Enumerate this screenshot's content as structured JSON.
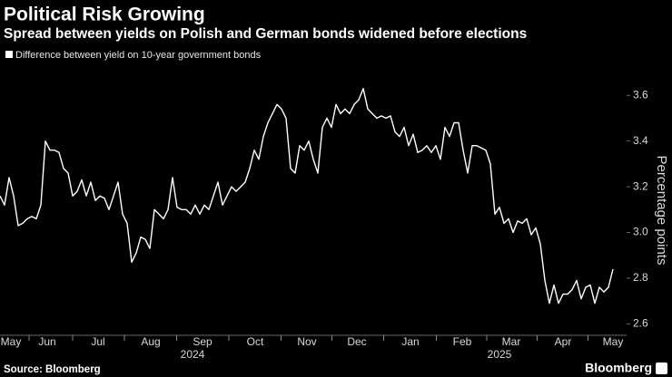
{
  "chart_data": {
    "type": "line",
    "title": "Political Risk Growing",
    "subtitle": "Spread between yields on Polish and German bonds widened before elections",
    "y_label": "Percentage points",
    "source": "Source: Bloomberg",
    "brand": "Bloomberg",
    "grid": false,
    "series": [
      {
        "name": "Difference between yield on 10-year government bonds",
        "color": "#ffffff",
        "values": [
          3.16,
          3.12,
          3.24,
          3.16,
          3.03,
          3.04,
          3.06,
          3.07,
          3.06,
          3.12,
          3.4,
          3.36,
          3.36,
          3.35,
          3.28,
          3.26,
          3.16,
          3.18,
          3.23,
          3.16,
          3.22,
          3.14,
          3.16,
          3.15,
          3.1,
          3.16,
          3.22,
          3.08,
          3.04,
          2.87,
          2.91,
          2.98,
          2.97,
          2.93,
          3.1,
          3.08,
          3.06,
          3.1,
          3.24,
          3.11,
          3.1,
          3.1,
          3.08,
          3.12,
          3.08,
          3.12,
          3.1,
          3.16,
          3.22,
          3.12,
          3.16,
          3.2,
          3.18,
          3.2,
          3.22,
          3.28,
          3.36,
          3.32,
          3.42,
          3.48,
          3.52,
          3.56,
          3.54,
          3.5,
          3.28,
          3.26,
          3.38,
          3.36,
          3.4,
          3.32,
          3.26,
          3.46,
          3.5,
          3.46,
          3.56,
          3.52,
          3.54,
          3.52,
          3.56,
          3.58,
          3.63,
          3.54,
          3.52,
          3.5,
          3.51,
          3.5,
          3.51,
          3.44,
          3.42,
          3.46,
          3.38,
          3.43,
          3.35,
          3.36,
          3.38,
          3.35,
          3.38,
          3.32,
          3.46,
          3.42,
          3.48,
          3.48,
          3.36,
          3.26,
          3.38,
          3.38,
          3.37,
          3.36,
          3.3,
          3.08,
          3.11,
          3.04,
          3.06,
          3.0,
          3.05,
          3.04,
          3.06,
          2.99,
          3.02,
          2.95,
          2.79,
          2.69,
          2.77,
          2.69,
          2.73,
          2.73,
          2.75,
          2.79,
          2.71,
          2.76,
          2.77,
          2.69,
          2.76,
          2.74,
          2.76,
          2.84
        ]
      }
    ],
    "xlim": [
      0,
      138
    ],
    "xticks": [
      {
        "value": 2.4,
        "label": "May"
      },
      {
        "value": 10.4,
        "label": "Jun"
      },
      {
        "value": 21.6,
        "label": "Jul"
      },
      {
        "value": 33.2,
        "label": "Aug"
      },
      {
        "value": 44.6,
        "label": "Sep"
      },
      {
        "value": 56.2,
        "label": "Oct"
      },
      {
        "value": 67.6,
        "label": "Nov"
      },
      {
        "value": 78.6,
        "label": "Dec"
      },
      {
        "value": 90.4,
        "label": "Jan"
      },
      {
        "value": 101.8,
        "label": "Feb"
      },
      {
        "value": 112.6,
        "label": "Mar"
      },
      {
        "value": 124,
        "label": "Apr"
      },
      {
        "value": 135,
        "label": "May"
      }
    ],
    "year_labels": [
      {
        "value": 42.4,
        "label": "2024"
      },
      {
        "value": 110,
        "label": "2025"
      }
    ],
    "ylim": [
      2.55,
      3.7
    ],
    "yticks": [
      {
        "value": 2.6,
        "label": "2.6"
      },
      {
        "value": 2.8,
        "label": "2.8"
      },
      {
        "value": 3,
        "label": "3.0"
      },
      {
        "value": 3.2,
        "label": "3.2"
      },
      {
        "value": 3.4,
        "label": "3.4"
      },
      {
        "value": 3.6,
        "label": "3.6"
      }
    ]
  }
}
